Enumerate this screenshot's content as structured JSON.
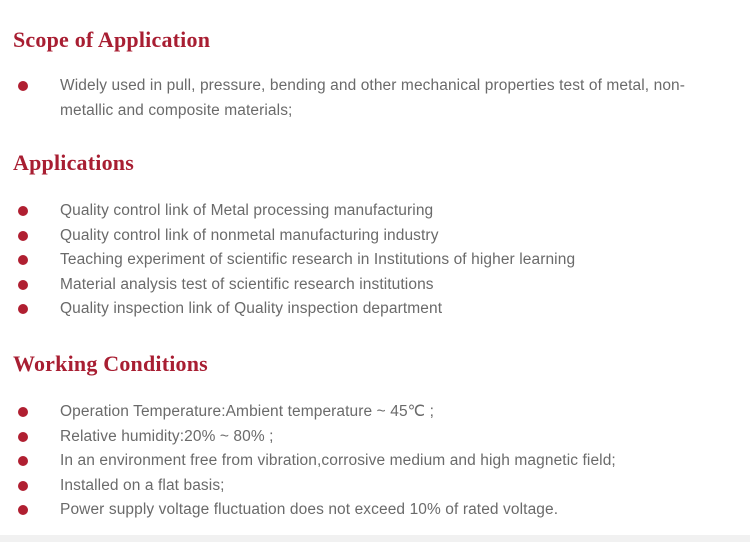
{
  "page": {
    "background": "#ffffff",
    "heading_color": "#a81e32",
    "bullet_color": "#b01f31",
    "body_text_color": "#6a6a6a",
    "footer_bar_color": "#f1f1f1"
  },
  "sections": [
    {
      "title": "Scope of Application",
      "items": [
        "Widely used in pull, pressure, bending and other mechanical properties test of metal, non-metallic and composite materials;"
      ]
    },
    {
      "title": "Applications",
      "items": [
        "Quality control link of Metal processing manufacturing",
        "Quality control link of nonmetal manufacturing industry",
        "Teaching experiment of scientific research in Institutions of higher learning",
        "Material analysis test of scientific research institutions",
        "Quality inspection link of Quality inspection department"
      ]
    },
    {
      "title": "Working Conditions",
      "items": [
        "Operation Temperature:Ambient temperature ~ 45℃ ;",
        "Relative humidity:20% ~ 80% ;",
        "In an environment free from vibration,corrosive medium and high magnetic field;",
        "Installed on a flat basis;",
        "Power supply voltage fluctuation does not exceed 10% of rated voltage."
      ]
    }
  ]
}
